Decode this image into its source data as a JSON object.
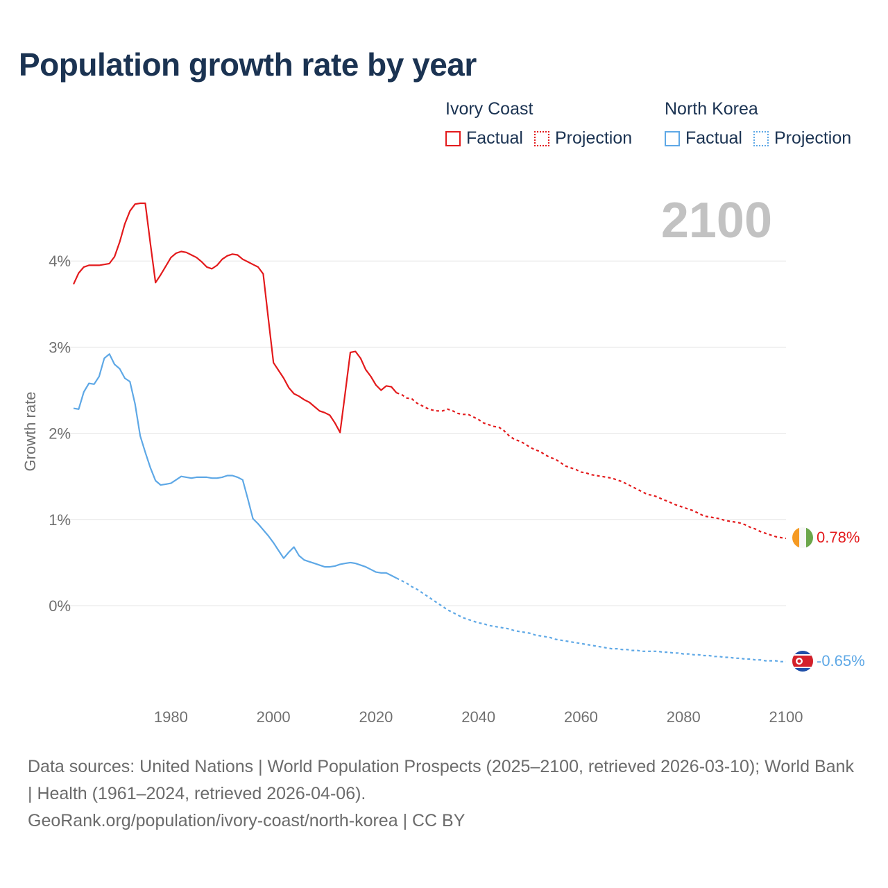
{
  "title": "Population growth rate by year",
  "legend": [
    {
      "name": "Ivory Coast",
      "factual_label": "Factual",
      "projection_label": "Projection",
      "color": "#e31a1c"
    },
    {
      "name": "North Korea",
      "factual_label": "Factual",
      "projection_label": "Projection",
      "color": "#5ea8e6"
    }
  ],
  "year_label": "2100",
  "end_labels": {
    "ivory_coast": "0.78%",
    "north_korea": "-0.65%"
  },
  "footer": {
    "sources": "Data sources: United Nations | World Population Prospects (2025–2100, retrieved 2026-03-10); World Bank | Health (1961–2024, retrieved 2026-04-06).",
    "link": "GeoRank.org/population/ivory-coast/north-korea | CC BY"
  },
  "chart_data": {
    "type": "line",
    "title": "Population growth rate by year",
    "xlabel": "",
    "ylabel": "Growth rate",
    "xlim": [
      1961,
      2100
    ],
    "ylim": [
      -0.9,
      4.9
    ],
    "x_ticks": [
      1980,
      2000,
      2020,
      2040,
      2060,
      2080,
      2100
    ],
    "y_ticks": [
      0,
      1,
      2,
      3,
      4
    ],
    "y_tick_labels": [
      "0%",
      "1%",
      "2%",
      "3%",
      "4%"
    ],
    "projection_start": 2024,
    "series": [
      {
        "name": "Ivory Coast",
        "color": "#e31a1c",
        "points": [
          [
            1961,
            3.73
          ],
          [
            1962,
            3.86
          ],
          [
            1963,
            3.93
          ],
          [
            1964,
            3.95
          ],
          [
            1965,
            3.95
          ],
          [
            1966,
            3.95
          ],
          [
            1967,
            3.96
          ],
          [
            1968,
            3.97
          ],
          [
            1969,
            4.05
          ],
          [
            1970,
            4.22
          ],
          [
            1971,
            4.43
          ],
          [
            1972,
            4.58
          ],
          [
            1973,
            4.66
          ],
          [
            1974,
            4.67
          ],
          [
            1975,
            4.67
          ],
          [
            1976,
            4.2
          ],
          [
            1977,
            3.75
          ],
          [
            1978,
            3.84
          ],
          [
            1979,
            3.94
          ],
          [
            1980,
            4.04
          ],
          [
            1981,
            4.09
          ],
          [
            1982,
            4.11
          ],
          [
            1983,
            4.1
          ],
          [
            1984,
            4.07
          ],
          [
            1985,
            4.04
          ],
          [
            1986,
            3.99
          ],
          [
            1987,
            3.93
          ],
          [
            1988,
            3.91
          ],
          [
            1989,
            3.95
          ],
          [
            1990,
            4.02
          ],
          [
            1991,
            4.06
          ],
          [
            1992,
            4.08
          ],
          [
            1993,
            4.07
          ],
          [
            1994,
            4.02
          ],
          [
            1995,
            3.99
          ],
          [
            1996,
            3.96
          ],
          [
            1997,
            3.93
          ],
          [
            1998,
            3.85
          ],
          [
            1999,
            3.33
          ],
          [
            2000,
            2.82
          ],
          [
            2001,
            2.73
          ],
          [
            2002,
            2.64
          ],
          [
            2003,
            2.53
          ],
          [
            2004,
            2.46
          ],
          [
            2005,
            2.43
          ],
          [
            2006,
            2.39
          ],
          [
            2007,
            2.36
          ],
          [
            2008,
            2.31
          ],
          [
            2009,
            2.26
          ],
          [
            2010,
            2.24
          ],
          [
            2011,
            2.21
          ],
          [
            2012,
            2.12
          ],
          [
            2013,
            2.01
          ],
          [
            2014,
            2.47
          ],
          [
            2015,
            2.94
          ],
          [
            2016,
            2.95
          ],
          [
            2017,
            2.87
          ],
          [
            2018,
            2.74
          ],
          [
            2019,
            2.66
          ],
          [
            2020,
            2.56
          ],
          [
            2021,
            2.5
          ],
          [
            2022,
            2.55
          ],
          [
            2023,
            2.54
          ],
          [
            2024,
            2.47
          ],
          [
            2025,
            2.45
          ],
          [
            2026,
            2.41
          ],
          [
            2027,
            2.4
          ],
          [
            2028,
            2.35
          ],
          [
            2029,
            2.32
          ],
          [
            2030,
            2.29
          ],
          [
            2031,
            2.27
          ],
          [
            2032,
            2.26
          ],
          [
            2033,
            2.26
          ],
          [
            2034,
            2.28
          ],
          [
            2035,
            2.26
          ],
          [
            2036,
            2.23
          ],
          [
            2037,
            2.22
          ],
          [
            2038,
            2.22
          ],
          [
            2039,
            2.19
          ],
          [
            2040,
            2.16
          ],
          [
            2041,
            2.12
          ],
          [
            2042,
            2.1
          ],
          [
            2043,
            2.08
          ],
          [
            2044,
            2.07
          ],
          [
            2045,
            2.03
          ],
          [
            2046,
            1.97
          ],
          [
            2047,
            1.93
          ],
          [
            2048,
            1.91
          ],
          [
            2049,
            1.88
          ],
          [
            2050,
            1.84
          ],
          [
            2051,
            1.81
          ],
          [
            2052,
            1.79
          ],
          [
            2053,
            1.75
          ],
          [
            2054,
            1.72
          ],
          [
            2055,
            1.7
          ],
          [
            2056,
            1.66
          ],
          [
            2057,
            1.62
          ],
          [
            2058,
            1.6
          ],
          [
            2059,
            1.58
          ],
          [
            2060,
            1.55
          ],
          [
            2061,
            1.54
          ],
          [
            2062,
            1.52
          ],
          [
            2063,
            1.51
          ],
          [
            2064,
            1.5
          ],
          [
            2065,
            1.49
          ],
          [
            2066,
            1.48
          ],
          [
            2067,
            1.46
          ],
          [
            2068,
            1.44
          ],
          [
            2069,
            1.41
          ],
          [
            2070,
            1.38
          ],
          [
            2071,
            1.35
          ],
          [
            2072,
            1.32
          ],
          [
            2073,
            1.29
          ],
          [
            2074,
            1.28
          ],
          [
            2075,
            1.26
          ],
          [
            2076,
            1.23
          ],
          [
            2077,
            1.21
          ],
          [
            2078,
            1.18
          ],
          [
            2079,
            1.16
          ],
          [
            2080,
            1.14
          ],
          [
            2081,
            1.12
          ],
          [
            2082,
            1.1
          ],
          [
            2083,
            1.07
          ],
          [
            2084,
            1.04
          ],
          [
            2085,
            1.03
          ],
          [
            2086,
            1.02
          ],
          [
            2087,
            1.01
          ],
          [
            2088,
            0.99
          ],
          [
            2089,
            0.98
          ],
          [
            2090,
            0.97
          ],
          [
            2091,
            0.96
          ],
          [
            2092,
            0.94
          ],
          [
            2093,
            0.91
          ],
          [
            2094,
            0.89
          ],
          [
            2095,
            0.86
          ],
          [
            2096,
            0.84
          ],
          [
            2097,
            0.82
          ],
          [
            2098,
            0.8
          ],
          [
            2099,
            0.79
          ],
          [
            2100,
            0.78
          ]
        ]
      },
      {
        "name": "North Korea",
        "color": "#5ea8e6",
        "points": [
          [
            1961,
            2.29
          ],
          [
            1962,
            2.28
          ],
          [
            1963,
            2.48
          ],
          [
            1964,
            2.58
          ],
          [
            1965,
            2.57
          ],
          [
            1966,
            2.66
          ],
          [
            1967,
            2.87
          ],
          [
            1968,
            2.92
          ],
          [
            1969,
            2.8
          ],
          [
            1970,
            2.75
          ],
          [
            1971,
            2.64
          ],
          [
            1972,
            2.6
          ],
          [
            1973,
            2.34
          ],
          [
            1974,
            1.97
          ],
          [
            1975,
            1.78
          ],
          [
            1976,
            1.6
          ],
          [
            1977,
            1.45
          ],
          [
            1978,
            1.4
          ],
          [
            1979,
            1.41
          ],
          [
            1980,
            1.42
          ],
          [
            1981,
            1.46
          ],
          [
            1982,
            1.5
          ],
          [
            1983,
            1.49
          ],
          [
            1984,
            1.48
          ],
          [
            1985,
            1.49
          ],
          [
            1986,
            1.49
          ],
          [
            1987,
            1.49
          ],
          [
            1988,
            1.48
          ],
          [
            1989,
            1.48
          ],
          [
            1990,
            1.49
          ],
          [
            1991,
            1.51
          ],
          [
            1992,
            1.51
          ],
          [
            1993,
            1.49
          ],
          [
            1994,
            1.46
          ],
          [
            1995,
            1.24
          ],
          [
            1996,
            1.01
          ],
          [
            1997,
            0.95
          ],
          [
            1998,
            0.88
          ],
          [
            1999,
            0.81
          ],
          [
            2000,
            0.73
          ],
          [
            2001,
            0.64
          ],
          [
            2002,
            0.55
          ],
          [
            2003,
            0.62
          ],
          [
            2004,
            0.68
          ],
          [
            2005,
            0.58
          ],
          [
            2006,
            0.53
          ],
          [
            2007,
            0.51
          ],
          [
            2008,
            0.49
          ],
          [
            2009,
            0.47
          ],
          [
            2010,
            0.45
          ],
          [
            2011,
            0.45
          ],
          [
            2012,
            0.46
          ],
          [
            2013,
            0.48
          ],
          [
            2014,
            0.49
          ],
          [
            2015,
            0.5
          ],
          [
            2016,
            0.49
          ],
          [
            2017,
            0.47
          ],
          [
            2018,
            0.45
          ],
          [
            2019,
            0.42
          ],
          [
            2020,
            0.39
          ],
          [
            2021,
            0.38
          ],
          [
            2022,
            0.38
          ],
          [
            2023,
            0.35
          ],
          [
            2024,
            0.32
          ],
          [
            2025,
            0.29
          ],
          [
            2026,
            0.26
          ],
          [
            2027,
            0.22
          ],
          [
            2028,
            0.19
          ],
          [
            2029,
            0.15
          ],
          [
            2030,
            0.11
          ],
          [
            2031,
            0.07
          ],
          [
            2032,
            0.03
          ],
          [
            2033,
            -0.01
          ],
          [
            2034,
            -0.05
          ],
          [
            2035,
            -0.08
          ],
          [
            2036,
            -0.11
          ],
          [
            2037,
            -0.14
          ],
          [
            2038,
            -0.16
          ],
          [
            2039,
            -0.18
          ],
          [
            2040,
            -0.2
          ],
          [
            2041,
            -0.21
          ],
          [
            2042,
            -0.23
          ],
          [
            2043,
            -0.24
          ],
          [
            2044,
            -0.25
          ],
          [
            2045,
            -0.26
          ],
          [
            2046,
            -0.27
          ],
          [
            2047,
            -0.29
          ],
          [
            2048,
            -0.3
          ],
          [
            2049,
            -0.31
          ],
          [
            2050,
            -0.32
          ],
          [
            2051,
            -0.34
          ],
          [
            2052,
            -0.35
          ],
          [
            2053,
            -0.36
          ],
          [
            2054,
            -0.37
          ],
          [
            2055,
            -0.39
          ],
          [
            2056,
            -0.4
          ],
          [
            2057,
            -0.41
          ],
          [
            2058,
            -0.42
          ],
          [
            2059,
            -0.43
          ],
          [
            2060,
            -0.44
          ],
          [
            2061,
            -0.45
          ],
          [
            2062,
            -0.46
          ],
          [
            2063,
            -0.47
          ],
          [
            2064,
            -0.48
          ],
          [
            2065,
            -0.49
          ],
          [
            2066,
            -0.5
          ],
          [
            2067,
            -0.5
          ],
          [
            2068,
            -0.51
          ],
          [
            2069,
            -0.51
          ],
          [
            2070,
            -0.52
          ],
          [
            2071,
            -0.52
          ],
          [
            2072,
            -0.53
          ],
          [
            2073,
            -0.53
          ],
          [
            2074,
            -0.53
          ],
          [
            2075,
            -0.53
          ],
          [
            2076,
            -0.54
          ],
          [
            2077,
            -0.54
          ],
          [
            2078,
            -0.55
          ],
          [
            2079,
            -0.55
          ],
          [
            2080,
            -0.56
          ],
          [
            2081,
            -0.56
          ],
          [
            2082,
            -0.57
          ],
          [
            2083,
            -0.57
          ],
          [
            2084,
            -0.58
          ],
          [
            2085,
            -0.58
          ],
          [
            2086,
            -0.59
          ],
          [
            2087,
            -0.59
          ],
          [
            2088,
            -0.6
          ],
          [
            2089,
            -0.6
          ],
          [
            2090,
            -0.61
          ],
          [
            2091,
            -0.61
          ],
          [
            2092,
            -0.62
          ],
          [
            2093,
            -0.62
          ],
          [
            2094,
            -0.63
          ],
          [
            2095,
            -0.63
          ],
          [
            2096,
            -0.64
          ],
          [
            2097,
            -0.64
          ],
          [
            2098,
            -0.64
          ],
          [
            2099,
            -0.65
          ],
          [
            2100,
            -0.65
          ]
        ]
      }
    ]
  }
}
